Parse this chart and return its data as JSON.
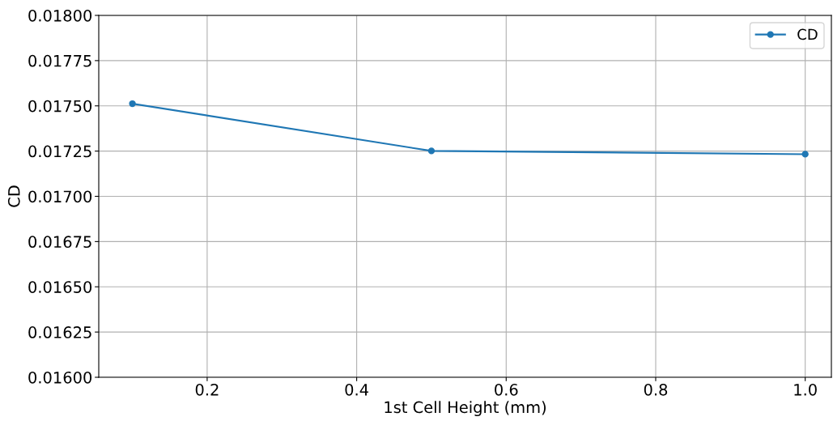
{
  "chart_data": {
    "type": "line",
    "xlabel": "1st Cell Height (mm)",
    "ylabel": "CD",
    "x": [
      0.1,
      0.5,
      1.0
    ],
    "series": [
      {
        "name": "CD",
        "color": "#1f77b4",
        "values": [
          0.017512,
          0.017251,
          0.017233
        ]
      }
    ],
    "xlim": [
      0.055,
      1.035
    ],
    "xticks": [
      0.2,
      0.4,
      0.6,
      0.8,
      {
        "value": 1.0,
        "label": "1.0"
      }
    ],
    "ylim": [
      0.016,
      0.018
    ],
    "yticks": [
      {
        "value": 0.016,
        "label": "0.01600"
      },
      {
        "value": 0.01625,
        "label": "0.01625"
      },
      {
        "value": 0.0165,
        "label": "0.01650"
      },
      {
        "value": 0.01675,
        "label": "0.01675"
      },
      {
        "value": 0.017,
        "label": "0.01700"
      },
      {
        "value": 0.01725,
        "label": "0.01725"
      },
      {
        "value": 0.0175,
        "label": "0.01750"
      },
      {
        "value": 0.01775,
        "label": "0.01775"
      },
      {
        "value": 0.018,
        "label": "0.01800"
      }
    ],
    "grid": true,
    "legend": "top right",
    "marker": "circle",
    "line_style": "solid"
  }
}
